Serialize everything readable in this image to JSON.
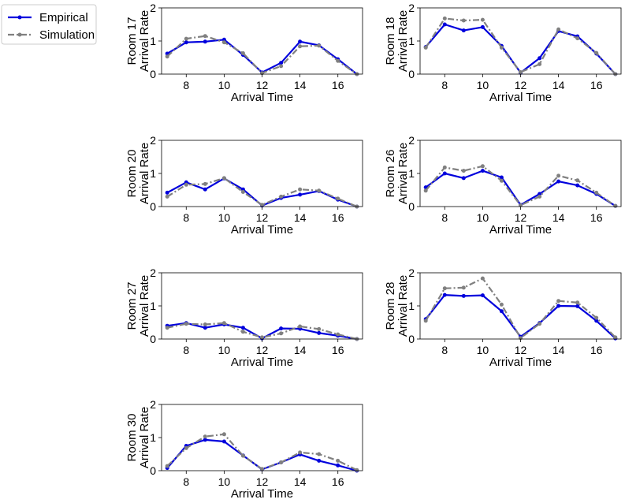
{
  "legend": {
    "placement": "top-left",
    "entries": [
      {
        "label": "Empirical",
        "color": "#0000dd",
        "style": "solid"
      },
      {
        "label": "Simulation",
        "color": "#808080",
        "style": "dash-dot"
      }
    ]
  },
  "chart_data": [
    {
      "type": "line",
      "ylabel_line1": "Room 17",
      "ylabel_line2": "Arrival Rate",
      "xlabel": "Arrival Time",
      "xlim": [
        6.7,
        17.3
      ],
      "ylim": [
        0,
        2
      ],
      "xticks": [
        8,
        10,
        12,
        14,
        16
      ],
      "yticks": [
        0,
        1,
        2
      ],
      "x": [
        7,
        8,
        9,
        10,
        11,
        12,
        13,
        14,
        15,
        16,
        17
      ],
      "series": [
        {
          "name": "Empirical",
          "values": [
            0.62,
            0.96,
            0.98,
            1.04,
            0.58,
            0.05,
            0.34,
            0.98,
            0.87,
            0.45,
            0.0
          ]
        },
        {
          "name": "Simulation",
          "values": [
            0.53,
            1.07,
            1.15,
            0.96,
            0.63,
            0.03,
            0.24,
            0.84,
            0.86,
            0.4,
            0.0
          ]
        }
      ]
    },
    {
      "type": "line",
      "ylabel_line1": "Room 18",
      "ylabel_line2": "Arrival Rate",
      "xlabel": "Arrival Time",
      "xlim": [
        6.7,
        17.3
      ],
      "ylim": [
        0,
        2
      ],
      "xticks": [
        8,
        10,
        12,
        14,
        16
      ],
      "yticks": [
        0,
        1,
        2
      ],
      "x": [
        7,
        8,
        9,
        10,
        11,
        12,
        13,
        14,
        15,
        16,
        17
      ],
      "series": [
        {
          "name": "Empirical",
          "values": [
            0.82,
            1.5,
            1.32,
            1.42,
            0.85,
            0.04,
            0.48,
            1.3,
            1.14,
            0.62,
            0.0
          ]
        },
        {
          "name": "Simulation",
          "values": [
            0.8,
            1.68,
            1.62,
            1.64,
            0.8,
            0.06,
            0.3,
            1.35,
            1.08,
            0.64,
            0.0
          ]
        }
      ]
    },
    {
      "type": "line",
      "ylabel_line1": "Room 20",
      "ylabel_line2": "Arrival Rate",
      "xlabel": "Arrival Time",
      "xlim": [
        6.7,
        17.3
      ],
      "ylim": [
        0,
        2
      ],
      "xticks": [
        8,
        10,
        12,
        14,
        16
      ],
      "yticks": [
        0,
        1,
        2
      ],
      "x": [
        7,
        8,
        9,
        10,
        11,
        12,
        13,
        14,
        15,
        16,
        17
      ],
      "series": [
        {
          "name": "Empirical",
          "values": [
            0.42,
            0.73,
            0.52,
            0.85,
            0.52,
            0.03,
            0.26,
            0.36,
            0.47,
            0.21,
            0.0
          ]
        },
        {
          "name": "Simulation",
          "values": [
            0.3,
            0.66,
            0.68,
            0.86,
            0.44,
            0.05,
            0.3,
            0.52,
            0.48,
            0.24,
            0.0
          ]
        }
      ]
    },
    {
      "type": "line",
      "ylabel_line1": "Room 26",
      "ylabel_line2": "Arrival Rate",
      "xlabel": "Arrival Time",
      "xlim": [
        6.7,
        17.3
      ],
      "ylim": [
        0,
        2
      ],
      "xticks": [
        8,
        10,
        12,
        14,
        16
      ],
      "yticks": [
        0,
        1,
        2
      ],
      "x": [
        7,
        8,
        9,
        10,
        11,
        12,
        13,
        14,
        15,
        16,
        17
      ],
      "series": [
        {
          "name": "Empirical",
          "values": [
            0.58,
            1.0,
            0.86,
            1.08,
            0.88,
            0.05,
            0.38,
            0.76,
            0.64,
            0.38,
            0.02
          ]
        },
        {
          "name": "Simulation",
          "values": [
            0.48,
            1.18,
            1.08,
            1.22,
            0.78,
            0.04,
            0.3,
            0.93,
            0.79,
            0.42,
            0.02
          ]
        }
      ]
    },
    {
      "type": "line",
      "ylabel_line1": "Room 27",
      "ylabel_line2": "Arrival Rate",
      "xlabel": "Arrival Time",
      "xlim": [
        6.7,
        17.3
      ],
      "ylim": [
        0,
        2
      ],
      "xticks": [
        8,
        10,
        12,
        14,
        16
      ],
      "yticks": [
        0,
        1,
        2
      ],
      "x": [
        7,
        8,
        9,
        10,
        11,
        12,
        13,
        14,
        15,
        16,
        17
      ],
      "series": [
        {
          "name": "Empirical",
          "values": [
            0.4,
            0.48,
            0.34,
            0.44,
            0.34,
            0.02,
            0.32,
            0.31,
            0.18,
            0.1,
            0.0
          ]
        },
        {
          "name": "Simulation",
          "values": [
            0.34,
            0.46,
            0.44,
            0.48,
            0.22,
            0.05,
            0.17,
            0.38,
            0.3,
            0.14,
            0.0
          ]
        }
      ]
    },
    {
      "type": "line",
      "ylabel_line1": "Room 28",
      "ylabel_line2": "Arrival Rate",
      "xlabel": "Arrival Time",
      "xlim": [
        6.7,
        17.3
      ],
      "ylim": [
        0,
        2
      ],
      "xticks": [
        8,
        10,
        12,
        14,
        16
      ],
      "yticks": [
        0,
        1,
        2
      ],
      "x": [
        7,
        8,
        9,
        10,
        11,
        12,
        13,
        14,
        15,
        16,
        17
      ],
      "series": [
        {
          "name": "Empirical",
          "values": [
            0.6,
            1.33,
            1.3,
            1.32,
            0.84,
            0.07,
            0.48,
            1.0,
            0.99,
            0.55,
            0.02
          ]
        },
        {
          "name": "Simulation",
          "values": [
            0.55,
            1.53,
            1.55,
            1.83,
            1.04,
            0.03,
            0.46,
            1.15,
            1.1,
            0.64,
            0.05
          ]
        }
      ]
    },
    {
      "type": "line",
      "ylabel_line1": "Room 30",
      "ylabel_line2": "Arrival Rate",
      "xlabel": "Arrival Time",
      "xlim": [
        6.7,
        17.3
      ],
      "ylim": [
        0,
        2
      ],
      "xticks": [
        8,
        10,
        12,
        14,
        16
      ],
      "yticks": [
        0,
        1,
        2
      ],
      "x": [
        7,
        8,
        9,
        10,
        11,
        12,
        13,
        14,
        15,
        16,
        17
      ],
      "series": [
        {
          "name": "Empirical",
          "values": [
            0.08,
            0.75,
            0.93,
            0.88,
            0.46,
            0.04,
            0.25,
            0.49,
            0.3,
            0.16,
            0.0
          ]
        },
        {
          "name": "Simulation",
          "values": [
            0.14,
            0.68,
            1.03,
            1.1,
            0.45,
            0.05,
            0.25,
            0.55,
            0.5,
            0.3,
            0.02
          ]
        }
      ]
    }
  ]
}
